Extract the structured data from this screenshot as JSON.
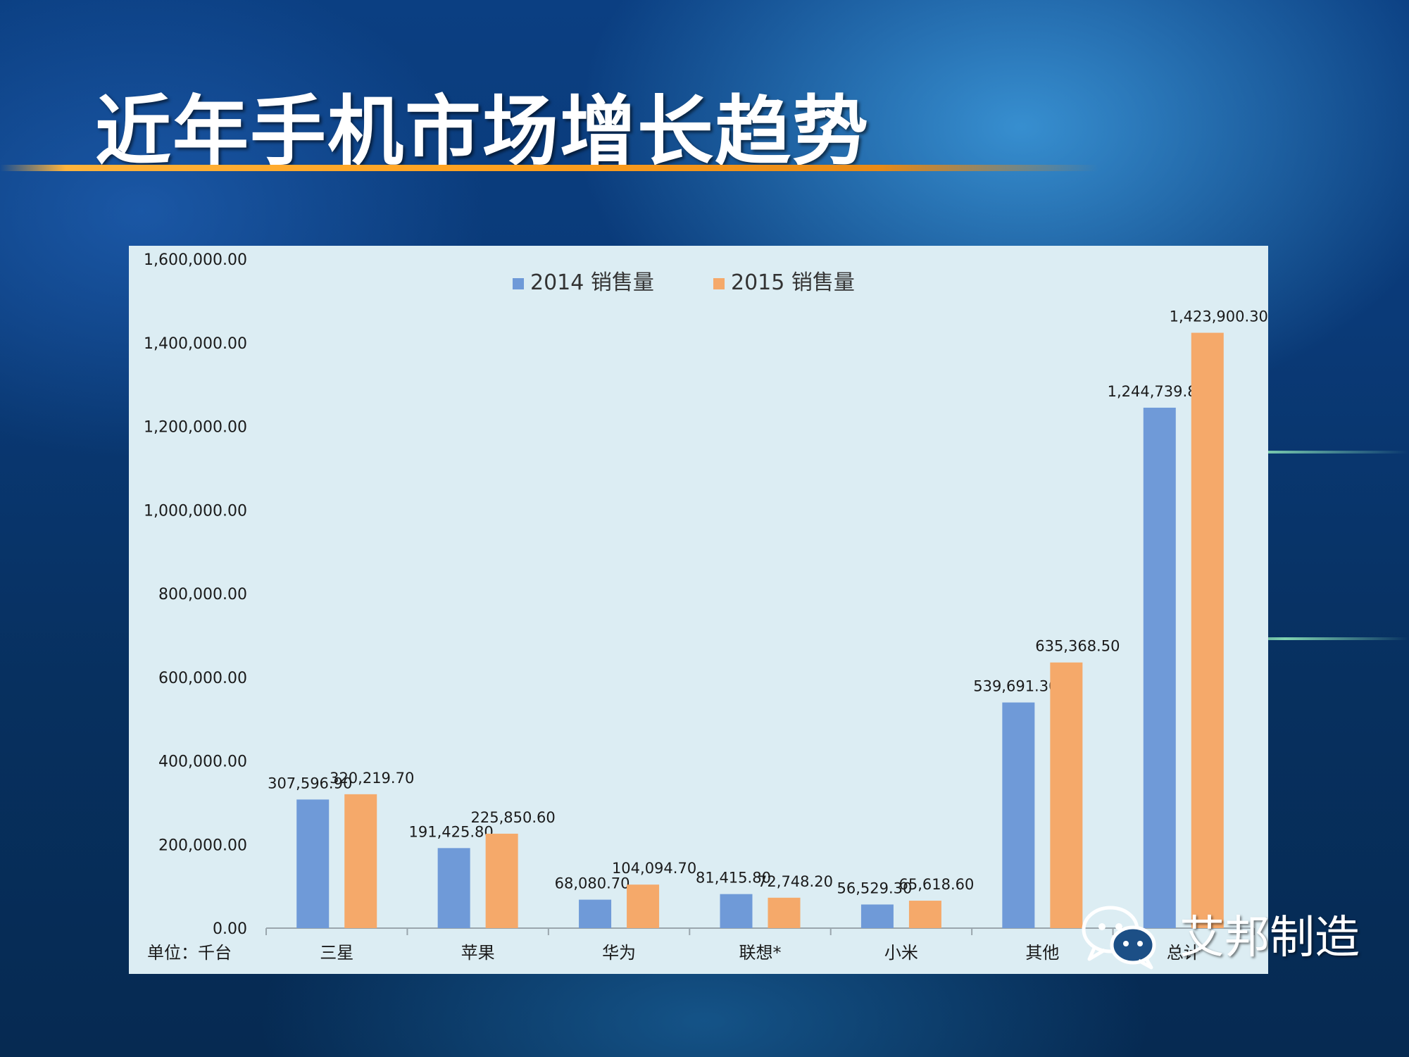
{
  "slide": {
    "title": "近年手机市场增长趋势",
    "watermark_text": "艾邦制造"
  },
  "colors": {
    "series_2014": "#6f9ad8",
    "series_2015": "#f5a96a",
    "panel_bg": "#dcedf3",
    "title_rule": "#ffa11f"
  },
  "chart_data": {
    "type": "bar",
    "categories": [
      "三星",
      "苹果",
      "华为",
      "联想*",
      "小米",
      "其他",
      "总计"
    ],
    "series": [
      {
        "name": "2014 销售量",
        "values": [
          307596.9,
          191425.8,
          68080.7,
          81415.8,
          56529.3,
          539691.3,
          1244739.8
        ]
      },
      {
        "name": "2015 销售量",
        "values": [
          320219.7,
          225850.6,
          104094.7,
          72748.2,
          65618.6,
          635368.5,
          1423900.3
        ]
      }
    ],
    "data_labels": [
      [
        "307,596.90",
        "191,425.80",
        "68,080.70",
        "81,415.80",
        "56,529.30",
        "539,691.30",
        "1,244,739.80"
      ],
      [
        "320,219.70",
        "225,850.60",
        "104,094.70",
        "72,748.20",
        "65,618.60",
        "635,368.50",
        "1,423,900.30"
      ]
    ],
    "y_ticks": [
      0,
      200000,
      400000,
      600000,
      800000,
      1000000,
      1200000,
      1400000,
      1600000
    ],
    "y_tick_labels": [
      "0.00",
      "200,000.00",
      "400,000.00",
      "600,000.00",
      "800,000.00",
      "1,000,000.00",
      "1,200,000.00",
      "1,400,000.00",
      "1,600,000.00"
    ],
    "ylim": [
      0,
      1600000
    ],
    "unit_label": "单位：千台",
    "legend_position": "top-center",
    "grid": false
  }
}
